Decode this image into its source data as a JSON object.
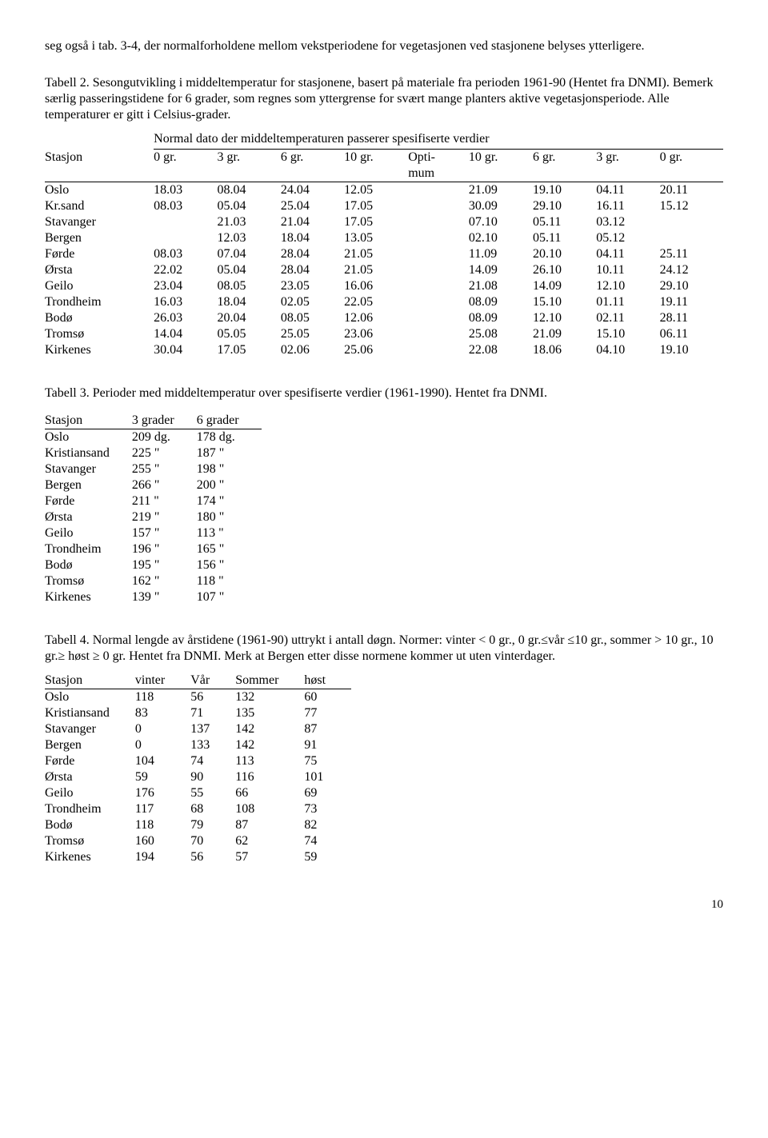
{
  "intro": {
    "p1": "seg også i tab. 3-4, der normalforholdene mellom vekstperiodene for vegetasjonen ved stasjonene belyses ytterligere.",
    "p2": "Tabell 2. Sesongutvikling i middeltemperatur for stasjonene, basert på materiale fra perioden 1961-90 (Hentet fra DNMI). Bemerk særlig passeringstidene for 6 grader, som regnes som yttergrense for svært mange planters aktive vegetasjonsperiode. Alle temperaturer er gitt i Celsius-grader."
  },
  "table2": {
    "span_title": "Normal dato der middeltemperaturen passerer spesifiserte verdier",
    "headers": [
      "Stasjon",
      "0 gr.",
      "3 gr.",
      "6 gr.",
      "10 gr.",
      "Opti-\nmum",
      "10 gr.",
      "6 gr.",
      "3 gr.",
      "0 gr."
    ],
    "rows": [
      [
        "Oslo",
        "18.03",
        "08.04",
        "24.04",
        "12.05",
        "",
        "21.09",
        "19.10",
        "04.11",
        "20.11"
      ],
      [
        "Kr.sand",
        "08.03",
        "05.04",
        "25.04",
        "17.05",
        "",
        "30.09",
        "29.10",
        "16.11",
        "15.12"
      ],
      [
        "Stavanger",
        "",
        "21.03",
        "21.04",
        "17.05",
        "",
        "07.10",
        "05.11",
        "03.12",
        ""
      ],
      [
        "Bergen",
        "",
        "12.03",
        "18.04",
        "13.05",
        "",
        "02.10",
        "05.11",
        "05.12",
        ""
      ],
      [
        "Førde",
        "08.03",
        "07.04",
        "28.04",
        "21.05",
        "",
        "11.09",
        "20.10",
        "04.11",
        "25.11"
      ],
      [
        "Ørsta",
        "22.02",
        "05.04",
        "28.04",
        "21.05",
        "",
        "14.09",
        "26.10",
        "10.11",
        "24.12"
      ],
      [
        "Geilo",
        "23.04",
        "08.05",
        "23.05",
        "16.06",
        "",
        "21.08",
        "14.09",
        "12.10",
        "29.10"
      ],
      [
        "Trondheim",
        "16.03",
        "18.04",
        "02.05",
        "22.05",
        "",
        "08.09",
        "15.10",
        "01.11",
        "19.11"
      ],
      [
        "Bodø",
        "26.03",
        "20.04",
        "08.05",
        "12.06",
        "",
        "08.09",
        "12.10",
        "02.11",
        "28.11"
      ],
      [
        "Tromsø",
        "14.04",
        "05.05",
        "25.05",
        "23.06",
        "",
        "25.08",
        "21.09",
        "15.10",
        "06.11"
      ],
      [
        "Kirkenes",
        "30.04",
        "17.05",
        "02.06",
        "25.06",
        "",
        "22.08",
        "18.06",
        "04.10",
        "19.10"
      ]
    ]
  },
  "caption3": "Tabell 3. Perioder med middeltemperatur over spesifiserte verdier (1961-1990). Hentet fra DNMI.",
  "table3": {
    "headers": [
      "Stasjon",
      "3 grader",
      "6 grader"
    ],
    "rows": [
      [
        "Oslo",
        "209 dg.",
        "178 dg."
      ],
      [
        "Kristiansand",
        "225 \"",
        "187 \""
      ],
      [
        "Stavanger",
        "255 \"",
        "198 \""
      ],
      [
        "Bergen",
        "266 \"",
        "200 \""
      ],
      [
        "Førde",
        "211 \"",
        "174 \""
      ],
      [
        "Ørsta",
        "219 \"",
        "180 \""
      ],
      [
        "Geilo",
        "157 \"",
        "113 \""
      ],
      [
        "Trondheim",
        "196 \"",
        "165 \""
      ],
      [
        "Bodø",
        "195 \"",
        "156 \""
      ],
      [
        "Tromsø",
        "162 \"",
        "118 \""
      ],
      [
        "Kirkenes",
        "139 \"",
        "107 \""
      ]
    ]
  },
  "caption4": "Tabell 4. Normal lengde av årstidene (1961-90) uttrykt i antall døgn. Normer: vinter < 0 gr., 0 gr.≤vår ≤10 gr., sommer > 10 gr., 10 gr.≥ høst ≥ 0 gr. Hentet fra DNMI. Merk at Bergen etter disse normene kommer ut uten vinterdager.",
  "table4": {
    "headers": [
      "Stasjon",
      "vinter",
      "Vår",
      "Sommer",
      "høst"
    ],
    "rows": [
      [
        "Oslo",
        "118",
        "56",
        "132",
        "60"
      ],
      [
        "Kristiansand",
        "83",
        "71",
        "135",
        "77"
      ],
      [
        "Stavanger",
        "0",
        "137",
        "142",
        "87"
      ],
      [
        "Bergen",
        "0",
        "133",
        "142",
        "91"
      ],
      [
        "Førde",
        "104",
        "74",
        "113",
        "75"
      ],
      [
        "Ørsta",
        "59",
        "90",
        "116",
        "101"
      ],
      [
        "Geilo",
        "176",
        "55",
        "66",
        "69"
      ],
      [
        "Trondheim",
        "117",
        "68",
        "108",
        "73"
      ],
      [
        "Bodø",
        "118",
        "79",
        "87",
        "82"
      ],
      [
        "Tromsø",
        "160",
        "70",
        "62",
        "74"
      ],
      [
        "Kirkenes",
        "194",
        "56",
        "57",
        "59"
      ]
    ]
  },
  "pagenum": "10"
}
